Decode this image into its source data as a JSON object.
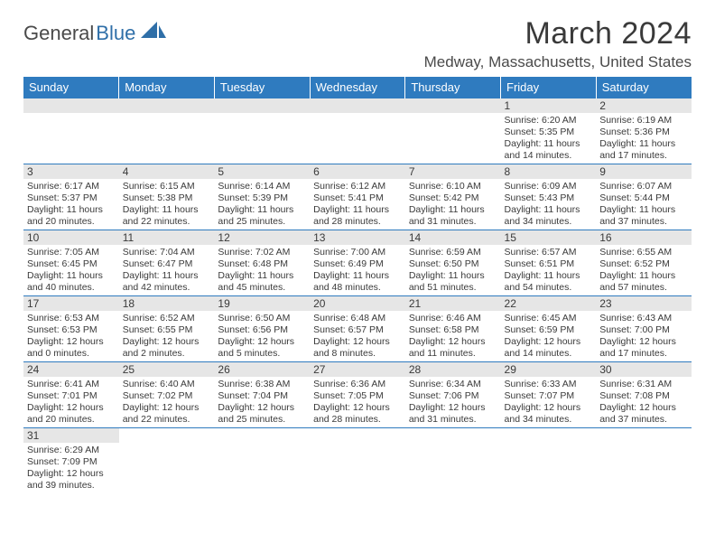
{
  "logo": {
    "text1": "General",
    "text2": "Blue"
  },
  "title": "March 2024",
  "location": "Medway, Massachusetts, United States",
  "colors": {
    "header_bg": "#2f7bbf",
    "header_text": "#ffffff",
    "daynum_bg": "#e6e6e6",
    "rule": "#2f7bbf",
    "body_text": "#3a3a3a"
  },
  "weekdays": [
    "Sunday",
    "Monday",
    "Tuesday",
    "Wednesday",
    "Thursday",
    "Friday",
    "Saturday"
  ],
  "weeks": [
    [
      {
        "n": "",
        "sr": "",
        "ss": "",
        "dl": ""
      },
      {
        "n": "",
        "sr": "",
        "ss": "",
        "dl": ""
      },
      {
        "n": "",
        "sr": "",
        "ss": "",
        "dl": ""
      },
      {
        "n": "",
        "sr": "",
        "ss": "",
        "dl": ""
      },
      {
        "n": "",
        "sr": "",
        "ss": "",
        "dl": ""
      },
      {
        "n": "1",
        "sr": "Sunrise: 6:20 AM",
        "ss": "Sunset: 5:35 PM",
        "dl": "Daylight: 11 hours and 14 minutes."
      },
      {
        "n": "2",
        "sr": "Sunrise: 6:19 AM",
        "ss": "Sunset: 5:36 PM",
        "dl": "Daylight: 11 hours and 17 minutes."
      }
    ],
    [
      {
        "n": "3",
        "sr": "Sunrise: 6:17 AM",
        "ss": "Sunset: 5:37 PM",
        "dl": "Daylight: 11 hours and 20 minutes."
      },
      {
        "n": "4",
        "sr": "Sunrise: 6:15 AM",
        "ss": "Sunset: 5:38 PM",
        "dl": "Daylight: 11 hours and 22 minutes."
      },
      {
        "n": "5",
        "sr": "Sunrise: 6:14 AM",
        "ss": "Sunset: 5:39 PM",
        "dl": "Daylight: 11 hours and 25 minutes."
      },
      {
        "n": "6",
        "sr": "Sunrise: 6:12 AM",
        "ss": "Sunset: 5:41 PM",
        "dl": "Daylight: 11 hours and 28 minutes."
      },
      {
        "n": "7",
        "sr": "Sunrise: 6:10 AM",
        "ss": "Sunset: 5:42 PM",
        "dl": "Daylight: 11 hours and 31 minutes."
      },
      {
        "n": "8",
        "sr": "Sunrise: 6:09 AM",
        "ss": "Sunset: 5:43 PM",
        "dl": "Daylight: 11 hours and 34 minutes."
      },
      {
        "n": "9",
        "sr": "Sunrise: 6:07 AM",
        "ss": "Sunset: 5:44 PM",
        "dl": "Daylight: 11 hours and 37 minutes."
      }
    ],
    [
      {
        "n": "10",
        "sr": "Sunrise: 7:05 AM",
        "ss": "Sunset: 6:45 PM",
        "dl": "Daylight: 11 hours and 40 minutes."
      },
      {
        "n": "11",
        "sr": "Sunrise: 7:04 AM",
        "ss": "Sunset: 6:47 PM",
        "dl": "Daylight: 11 hours and 42 minutes."
      },
      {
        "n": "12",
        "sr": "Sunrise: 7:02 AM",
        "ss": "Sunset: 6:48 PM",
        "dl": "Daylight: 11 hours and 45 minutes."
      },
      {
        "n": "13",
        "sr": "Sunrise: 7:00 AM",
        "ss": "Sunset: 6:49 PM",
        "dl": "Daylight: 11 hours and 48 minutes."
      },
      {
        "n": "14",
        "sr": "Sunrise: 6:59 AM",
        "ss": "Sunset: 6:50 PM",
        "dl": "Daylight: 11 hours and 51 minutes."
      },
      {
        "n": "15",
        "sr": "Sunrise: 6:57 AM",
        "ss": "Sunset: 6:51 PM",
        "dl": "Daylight: 11 hours and 54 minutes."
      },
      {
        "n": "16",
        "sr": "Sunrise: 6:55 AM",
        "ss": "Sunset: 6:52 PM",
        "dl": "Daylight: 11 hours and 57 minutes."
      }
    ],
    [
      {
        "n": "17",
        "sr": "Sunrise: 6:53 AM",
        "ss": "Sunset: 6:53 PM",
        "dl": "Daylight: 12 hours and 0 minutes."
      },
      {
        "n": "18",
        "sr": "Sunrise: 6:52 AM",
        "ss": "Sunset: 6:55 PM",
        "dl": "Daylight: 12 hours and 2 minutes."
      },
      {
        "n": "19",
        "sr": "Sunrise: 6:50 AM",
        "ss": "Sunset: 6:56 PM",
        "dl": "Daylight: 12 hours and 5 minutes."
      },
      {
        "n": "20",
        "sr": "Sunrise: 6:48 AM",
        "ss": "Sunset: 6:57 PM",
        "dl": "Daylight: 12 hours and 8 minutes."
      },
      {
        "n": "21",
        "sr": "Sunrise: 6:46 AM",
        "ss": "Sunset: 6:58 PM",
        "dl": "Daylight: 12 hours and 11 minutes."
      },
      {
        "n": "22",
        "sr": "Sunrise: 6:45 AM",
        "ss": "Sunset: 6:59 PM",
        "dl": "Daylight: 12 hours and 14 minutes."
      },
      {
        "n": "23",
        "sr": "Sunrise: 6:43 AM",
        "ss": "Sunset: 7:00 PM",
        "dl": "Daylight: 12 hours and 17 minutes."
      }
    ],
    [
      {
        "n": "24",
        "sr": "Sunrise: 6:41 AM",
        "ss": "Sunset: 7:01 PM",
        "dl": "Daylight: 12 hours and 20 minutes."
      },
      {
        "n": "25",
        "sr": "Sunrise: 6:40 AM",
        "ss": "Sunset: 7:02 PM",
        "dl": "Daylight: 12 hours and 22 minutes."
      },
      {
        "n": "26",
        "sr": "Sunrise: 6:38 AM",
        "ss": "Sunset: 7:04 PM",
        "dl": "Daylight: 12 hours and 25 minutes."
      },
      {
        "n": "27",
        "sr": "Sunrise: 6:36 AM",
        "ss": "Sunset: 7:05 PM",
        "dl": "Daylight: 12 hours and 28 minutes."
      },
      {
        "n": "28",
        "sr": "Sunrise: 6:34 AM",
        "ss": "Sunset: 7:06 PM",
        "dl": "Daylight: 12 hours and 31 minutes."
      },
      {
        "n": "29",
        "sr": "Sunrise: 6:33 AM",
        "ss": "Sunset: 7:07 PM",
        "dl": "Daylight: 12 hours and 34 minutes."
      },
      {
        "n": "30",
        "sr": "Sunrise: 6:31 AM",
        "ss": "Sunset: 7:08 PM",
        "dl": "Daylight: 12 hours and 37 minutes."
      }
    ],
    [
      {
        "n": "31",
        "sr": "Sunrise: 6:29 AM",
        "ss": "Sunset: 7:09 PM",
        "dl": "Daylight: 12 hours and 39 minutes."
      },
      {
        "n": "",
        "sr": "",
        "ss": "",
        "dl": ""
      },
      {
        "n": "",
        "sr": "",
        "ss": "",
        "dl": ""
      },
      {
        "n": "",
        "sr": "",
        "ss": "",
        "dl": ""
      },
      {
        "n": "",
        "sr": "",
        "ss": "",
        "dl": ""
      },
      {
        "n": "",
        "sr": "",
        "ss": "",
        "dl": ""
      },
      {
        "n": "",
        "sr": "",
        "ss": "",
        "dl": ""
      }
    ]
  ]
}
